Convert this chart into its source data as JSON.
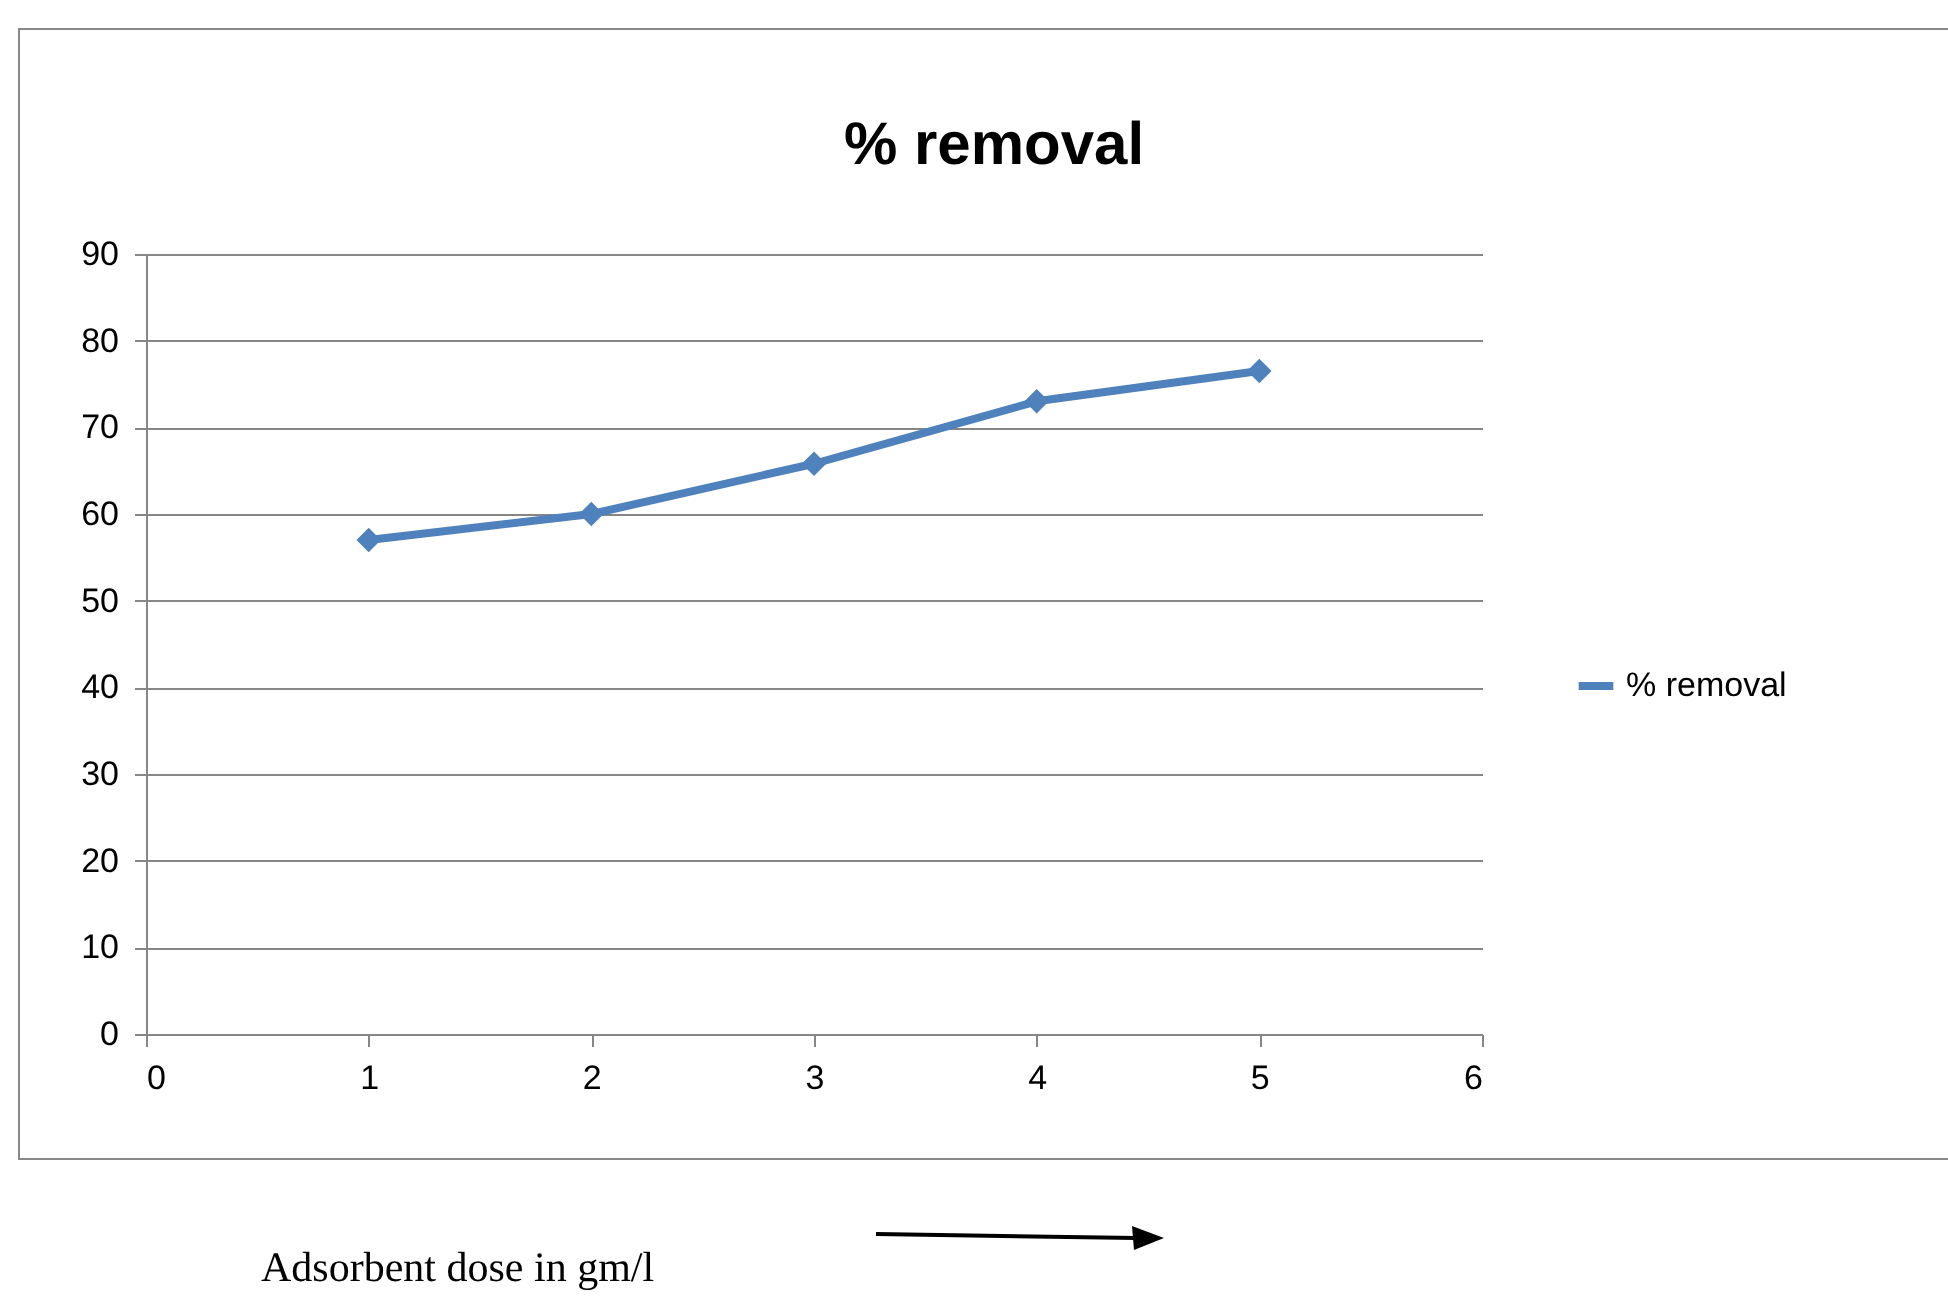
{
  "chart_data": {
    "type": "line",
    "title": "% removal",
    "xlabel": "Adsorbent dose in gm/l",
    "x": [
      1,
      2,
      3,
      4,
      5
    ],
    "series": [
      {
        "name": "% removal",
        "color": "#4f81bd",
        "values": [
          57,
          60,
          65.8,
          73,
          76.5
        ]
      }
    ],
    "xlim": [
      0,
      6
    ],
    "xticks": [
      0,
      1,
      2,
      3,
      4,
      5,
      6
    ],
    "ylim": [
      0,
      90
    ],
    "yticks": [
      0,
      10,
      20,
      30,
      40,
      50,
      60,
      70,
      80,
      90
    ],
    "grid": "y",
    "legend": "right",
    "marker": "diamond",
    "line_style": "solid"
  }
}
